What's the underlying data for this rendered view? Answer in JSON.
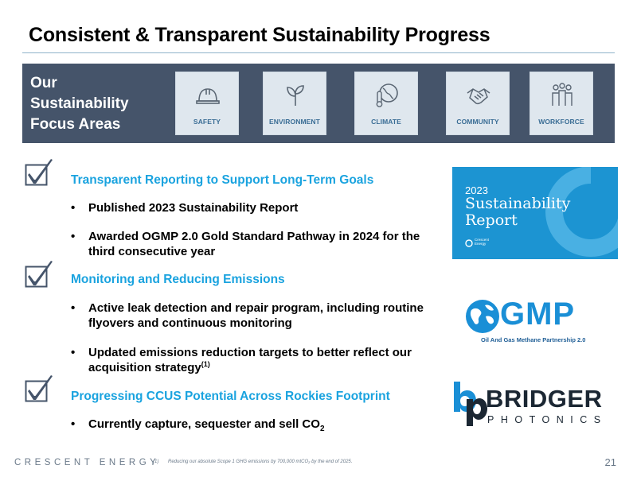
{
  "slide": {
    "title": "Consistent & Transparent Sustainability Progress",
    "page_number": "21"
  },
  "banner": {
    "label_line1": "Our",
    "label_line2": "Sustainability",
    "label_line3": "Focus Areas",
    "tiles": [
      {
        "label": "SAFETY",
        "icon": "hard-hat-icon"
      },
      {
        "label": "ENVIRONMENT",
        "icon": "plant-icon"
      },
      {
        "label": "CLIMATE",
        "icon": "globe-thermometer-icon"
      },
      {
        "label": "COMMUNITY",
        "icon": "handshake-icon"
      },
      {
        "label": "WORKFORCE",
        "icon": "people-icon"
      }
    ]
  },
  "sections": [
    {
      "heading": "Transparent Reporting to Support Long-Term Goals",
      "bullets": [
        "Published 2023 Sustainability Report",
        "Awarded OGMP 2.0 Gold Standard Pathway in 2024 for the third consecutive year"
      ]
    },
    {
      "heading": "Monitoring and Reducing Emissions",
      "bullets": [
        "Active leak detection and repair program, including routine flyovers and continuous monitoring",
        "Updated emissions reduction targets to better reflect our acquisition strategy"
      ],
      "footnote_ref": "(1)"
    },
    {
      "heading": "Progressing CCUS Potential Across Rockies Footprint",
      "bullets": [
        "Currently capture, sequester and sell CO"
      ],
      "subscript": "2"
    }
  ],
  "report_card": {
    "year": "2023",
    "title_line1": "Sustainability",
    "title_line2": "Report",
    "brand_line1": "Crescent",
    "brand_line2": "Energy"
  },
  "logos": {
    "ogmp_name": "GMP",
    "ogmp_sub": "Oil And Gas Methane Partnership 2.0",
    "bridger_name": "BRIDGER",
    "bridger_sub": "PHOTONICS"
  },
  "footer": {
    "brand": "CRESCENT ENERGY",
    "footnote_num": "(1)",
    "footnote_text": "Reducing our absolute Scope 1 GHG emissions by 700,000 mtCO₂ by the end of 2025."
  },
  "colors": {
    "accent_blue": "#1aa3df",
    "banner_bg": "#45546a",
    "tile_bg": "#dfe7ee",
    "tile_text": "#3a6d95"
  }
}
